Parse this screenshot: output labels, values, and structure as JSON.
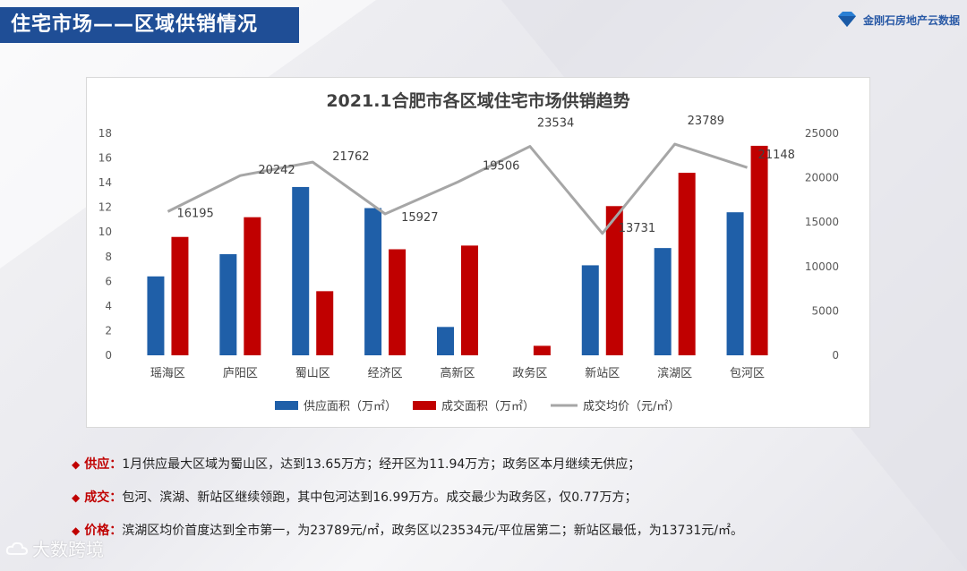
{
  "header": {
    "title": "住宅市场——区域供销情况",
    "logo_text": "金刚石房地产云数据"
  },
  "colors": {
    "supply": "#1f5fa8",
    "deal": "#c00000",
    "price": "#a6a6a6",
    "accent": "#c00000",
    "title_bg": "#1f4e96"
  },
  "chart_data": {
    "type": "bar",
    "title": "2021.1合肥市各区域住宅市场供销趋势",
    "categories": [
      "瑶海区",
      "庐阳区",
      "蜀山区",
      "经济区",
      "高新区",
      "政务区",
      "新站区",
      "滨湖区",
      "包河区"
    ],
    "series": [
      {
        "name": "供应面积（万㎡）",
        "type": "bar",
        "axis": "left",
        "values": [
          6.4,
          8.2,
          13.65,
          11.94,
          2.3,
          0,
          7.3,
          8.7,
          11.6
        ]
      },
      {
        "name": "成交面积（万㎡）",
        "type": "bar",
        "axis": "left",
        "values": [
          9.6,
          11.2,
          5.2,
          8.6,
          8.9,
          0.77,
          12.1,
          14.8,
          16.99
        ]
      },
      {
        "name": "成交均价（元/㎡）",
        "type": "line",
        "axis": "right",
        "values": [
          16195,
          20242,
          21762,
          15927,
          19506,
          23534,
          13731,
          23789,
          21148
        ]
      }
    ],
    "y_left": {
      "min": 0,
      "max": 18,
      "ticks": [
        0,
        2,
        4,
        6,
        8,
        10,
        12,
        14,
        16,
        18
      ]
    },
    "y_right": {
      "min": 0,
      "max": 25000,
      "ticks": [
        0,
        5000,
        10000,
        15000,
        20000,
        25000
      ]
    },
    "price_labels": [
      "16195",
      "20242",
      "21762",
      "15927",
      "19506",
      "23534",
      "13731",
      "23789",
      "21148"
    ],
    "legend": [
      "供应面积（万㎡）",
      "成交面积（万㎡）",
      "成交均价（元/㎡）"
    ],
    "legend_position": "bottom"
  },
  "notes": [
    {
      "label": "供应：",
      "text": "1月供应最大区域为蜀山区，达到13.65万方；经开区为11.94万方；政务区本月继续无供应；"
    },
    {
      "label": "成交：",
      "text": "包河、滨湖、新站区继续领跑，其中包河达到16.99万方。成交最少为政务区，仅0.77万方；"
    },
    {
      "label": "价格：",
      "text": "滨湖区均价首度达到全市第一，为23789元/㎡，政务区以23534元/平位居第二；新站区最低，为13731元/㎡。"
    }
  ],
  "bullet_marker": "◆",
  "watermark": "大数跨境",
  "watermark_icon": "cloud-icon"
}
